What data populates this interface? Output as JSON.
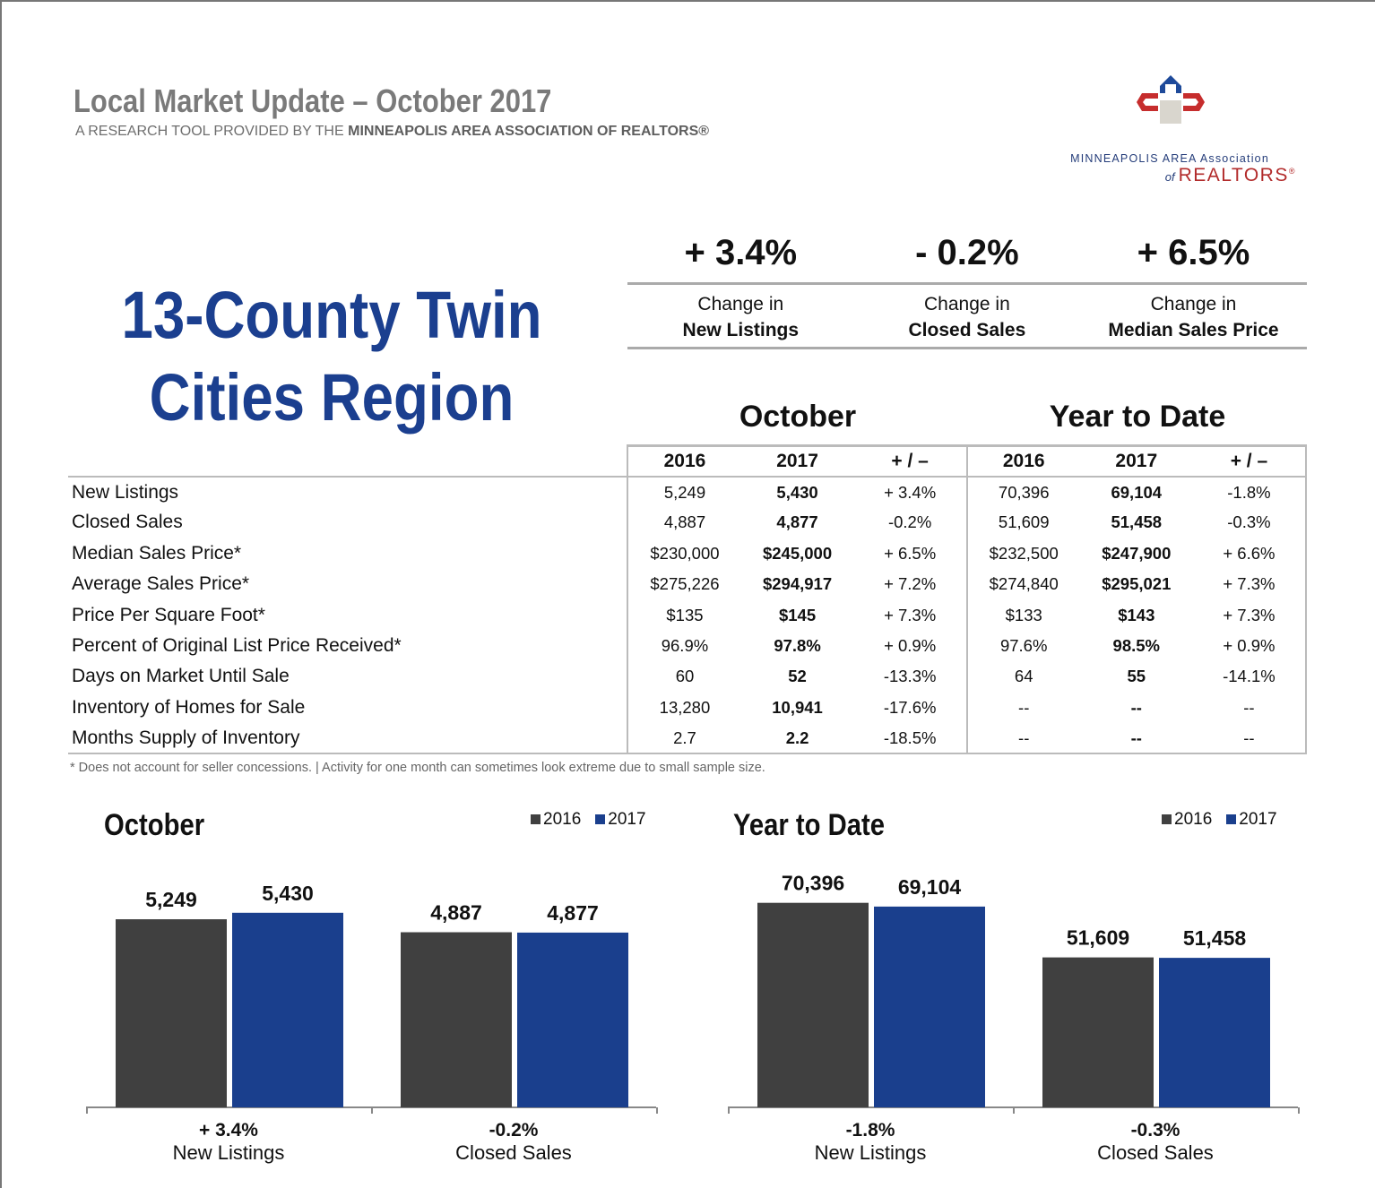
{
  "header": {
    "title": "Local Market Update – October 2017",
    "subtitle_prefix": "A RESEARCH TOOL PROVIDED BY THE",
    "subtitle_org": "MINNEAPOLIS AREA ASSOCIATION OF REALTORS®"
  },
  "logo": {
    "line1": "MINNEAPOLIS AREA Association",
    "line2_of": "of",
    "line2_main": "REALTORS",
    "line2_mark": "®",
    "colors": {
      "blue": "#1e4a9a",
      "red": "#c62d2d",
      "gray": "#d9d6ce"
    }
  },
  "region": {
    "line1": "13-County Twin",
    "line2": "Cities Region"
  },
  "kpis": [
    {
      "value": "+ 3.4%",
      "label1": "Change in",
      "label2": "New Listings"
    },
    {
      "value": "- 0.2%",
      "label1": "Change in",
      "label2": "Closed Sales"
    },
    {
      "value": "+ 6.5%",
      "label1": "Change in",
      "label2": "Median Sales Price"
    }
  ],
  "table": {
    "group_month": "October",
    "group_ytd": "Year to Date",
    "col_headers": [
      "2016",
      "2017",
      "+ / –",
      "2016",
      "2017",
      "+ / –"
    ],
    "rows": [
      {
        "metric": "New Listings",
        "m16": "5,249",
        "m17": "5,430",
        "mchg": "+ 3.4%",
        "y16": "70,396",
        "y17": "69,104",
        "ychg": "-1.8%"
      },
      {
        "metric": "Closed Sales",
        "m16": "4,887",
        "m17": "4,877",
        "mchg": "-0.2%",
        "y16": "51,609",
        "y17": "51,458",
        "ychg": "-0.3%"
      },
      {
        "metric": "Median Sales Price*",
        "m16": "$230,000",
        "m17": "$245,000",
        "mchg": "+ 6.5%",
        "y16": "$232,500",
        "y17": "$247,900",
        "ychg": "+ 6.6%"
      },
      {
        "metric": "Average Sales Price*",
        "m16": "$275,226",
        "m17": "$294,917",
        "mchg": "+ 7.2%",
        "y16": "$274,840",
        "y17": "$295,021",
        "ychg": "+ 7.3%"
      },
      {
        "metric": "Price Per Square Foot*",
        "m16": "$135",
        "m17": "$145",
        "mchg": "+ 7.3%",
        "y16": "$133",
        "y17": "$143",
        "ychg": "+ 7.3%"
      },
      {
        "metric": "Percent of Original List Price Received*",
        "m16": "96.9%",
        "m17": "97.8%",
        "mchg": "+ 0.9%",
        "y16": "97.6%",
        "y17": "98.5%",
        "ychg": "+ 0.9%"
      },
      {
        "metric": "Days on Market Until Sale",
        "m16": "60",
        "m17": "52",
        "mchg": "-13.3%",
        "y16": "64",
        "y17": "55",
        "ychg": "-14.1%"
      },
      {
        "metric": "Inventory of Homes for Sale",
        "m16": "13,280",
        "m17": "10,941",
        "mchg": "-17.6%",
        "y16": "--",
        "y17": "--",
        "ychg": "--"
      },
      {
        "metric": "Months Supply of Inventory",
        "m16": "2.7",
        "m17": "2.2",
        "mchg": "-18.5%",
        "y16": "--",
        "y17": "--",
        "ychg": "--"
      }
    ],
    "footnote": "* Does not account for seller concessions.  |  Activity for one month can sometimes look extreme due to small sample size."
  },
  "chart_data": [
    {
      "type": "bar",
      "title": "October",
      "categories": [
        "New Listings",
        "Closed Sales"
      ],
      "category_changes": [
        "+ 3.4%",
        "-0.2%"
      ],
      "series": [
        {
          "name": "2016",
          "color": "#404040",
          "values": [
            5249,
            4887
          ],
          "labels": [
            "5,249",
            "4,887"
          ]
        },
        {
          "name": "2017",
          "color": "#1a3f8d",
          "values": [
            5430,
            4877
          ],
          "labels": [
            "5,430",
            "4,877"
          ]
        }
      ],
      "legend": "top-right"
    },
    {
      "type": "bar",
      "title": "Year to Date",
      "categories": [
        "New Listings",
        "Closed Sales"
      ],
      "category_changes": [
        "-1.8%",
        "-0.3%"
      ],
      "series": [
        {
          "name": "2016",
          "color": "#404040",
          "values": [
            70396,
            51609
          ],
          "labels": [
            "70,396",
            "51,609"
          ]
        },
        {
          "name": "2017",
          "color": "#1a3f8d",
          "values": [
            69104,
            51458
          ],
          "labels": [
            "69,104",
            "51,458"
          ]
        }
      ],
      "legend": "top-right"
    }
  ]
}
